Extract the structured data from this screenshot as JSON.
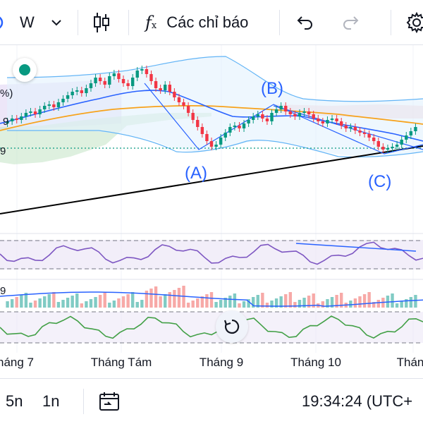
{
  "toolbar": {
    "interval": "W",
    "indicators_label": "Các chỉ báo",
    "icons": [
      "chevron-down-icon",
      "candles-icon",
      "fx-icon",
      "undo-icon",
      "redo-icon",
      "gear-icon"
    ]
  },
  "chart": {
    "wave_labels": {
      "a": "(A)",
      "b": "(B)",
      "c": "(C)"
    },
    "edge_labels": {
      "pct": "%)",
      "nine_1": "9",
      "nine_2": "9",
      "nine_3": "9"
    },
    "xaxis": [
      "háng 7",
      "Tháng Tám",
      "Tháng 9",
      "Tháng 10",
      "Thán"
    ],
    "colors": {
      "up": "#089981",
      "down": "#f23645",
      "ma_blue": "#2962ff",
      "ma_orange": "#f7a21b",
      "rsi": "#7e57c2",
      "osc": "#43a047"
    }
  },
  "bottombar": {
    "range_5y": "5n",
    "range_1y": "1n",
    "time": "19:34:24 (UTC+"
  }
}
